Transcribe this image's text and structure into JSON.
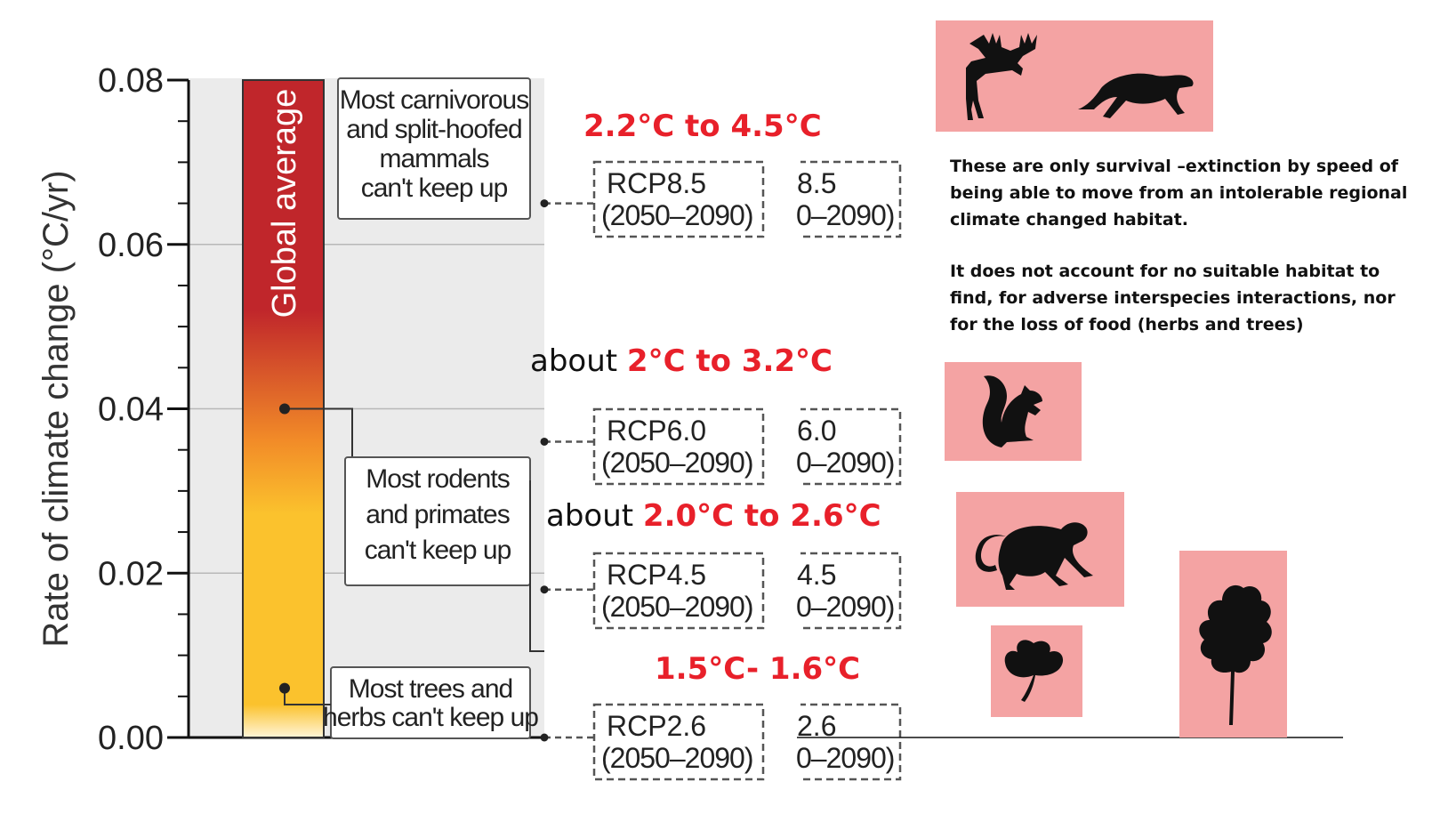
{
  "chart_data": {
    "type": "bar",
    "ylabel": "Rate of climate change (°C/yr)",
    "ylim": [
      0,
      0.08
    ],
    "yticks": [
      "0.00",
      "0.02",
      "0.04",
      "0.06",
      "0.08"
    ],
    "bar": {
      "label": "Global average",
      "value": 0.08
    },
    "thresholds": [
      {
        "group": "Most carnivorous and split-hoofed mammals can't keep up",
        "lines": [
          "Most carnivorous",
          "and split-hoofed",
          "mammals",
          "can't keep up"
        ],
        "value": 0.04
      },
      {
        "group": "Most rodents and primates can't keep up",
        "lines": [
          "Most rodents",
          "and primates",
          "can't keep up"
        ],
        "value": 0.006
      },
      {
        "group": "Most trees and herbs can't keep up",
        "lines": [
          "Most trees and",
          "herbs can't keep up"
        ],
        "value": 0.006
      }
    ],
    "scenarios": [
      {
        "name": "RCP8.5",
        "period": "(2050–2090)",
        "value": 0.065,
        "partial_name": "8.5",
        "partial_period": "0–2090)"
      },
      {
        "name": "RCP6.0",
        "period": "(2050–2090)",
        "value": 0.036,
        "partial_name": "6.0",
        "partial_period": "0–2090)"
      },
      {
        "name": "RCP4.5",
        "period": "(2050–2090)",
        "value": 0.018,
        "partial_name": "4.5",
        "partial_period": "0–2090)"
      },
      {
        "name": "RCP2.6",
        "period": "(2050–2090)",
        "value": 0.0,
        "partial_name": "2.6",
        "partial_period": "0–2090)"
      }
    ],
    "colors": {
      "bar_top": "#c0262b",
      "bar_mid": "#f7a823",
      "bar_low": "#fbc22d",
      "panel": "#ebebeb",
      "highlight": "#e8202a",
      "tile": "#f4a3a3"
    }
  },
  "headlines": [
    {
      "prefix": "",
      "range": "2.2°C to 4.5°C"
    },
    {
      "prefix": "about ",
      "range": "2°C to 3.2°C"
    },
    {
      "prefix": "about ",
      "range": "2.0°C to 2.6°C"
    },
    {
      "prefix": "",
      "range": "1.5°C- 1.6°C"
    }
  ],
  "note": {
    "p1": "These are only survival –extinction by speed of being able to move from an intolerable regional climate changed habitat.",
    "p2": "It does not account for  no suitable habitat to find, for adverse interspecies interactions, nor for the loss of  food (herbs and trees)"
  },
  "icons": [
    "moose-icon",
    "cheetah-icon",
    "squirrel-icon",
    "monkey-icon",
    "leaf-icon",
    "tree-icon"
  ]
}
